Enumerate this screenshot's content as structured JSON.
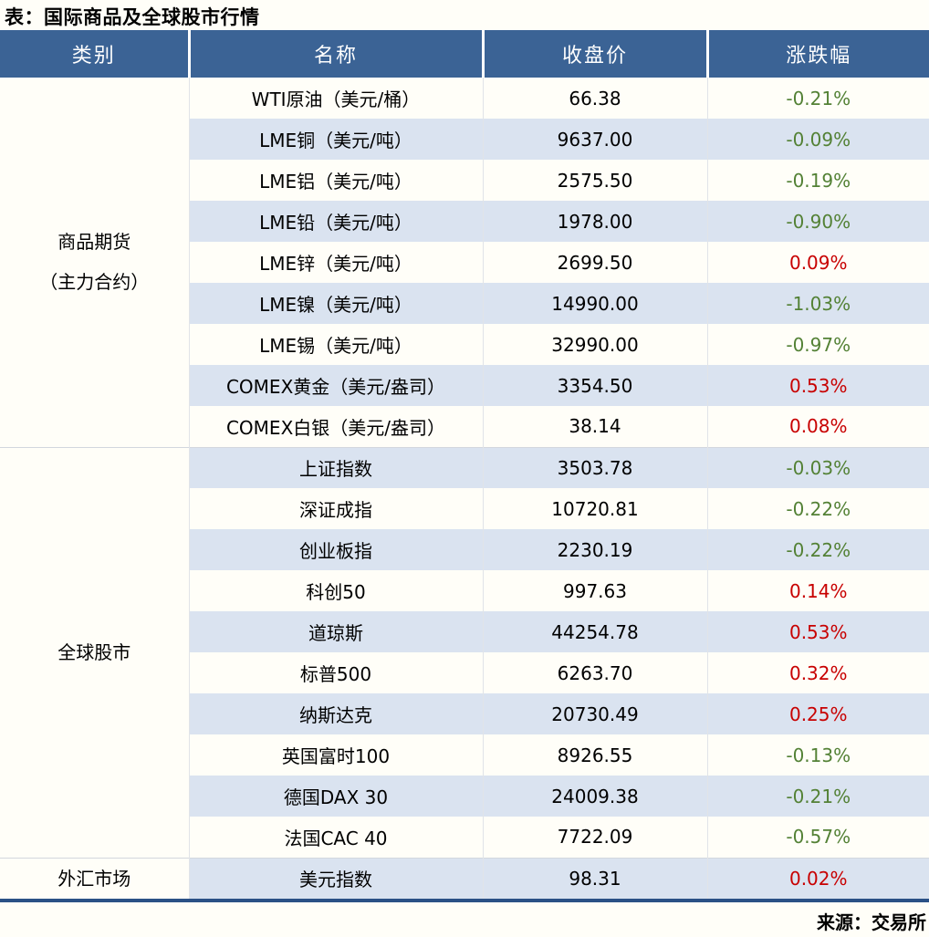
{
  "title": "表：国际商品及全球股市行情",
  "source": "来源：交易所",
  "colors": {
    "page-bg": "#FFFEF8",
    "header-bg": "#3B6395",
    "header-text": "#FFFFFF",
    "header-divider": "#FFFFFF",
    "stripe-bg": "#DAE3F0",
    "grid-line": "#E1E4E8",
    "section-line": "#D2D7DE",
    "bottom-border": "#2B5186",
    "up-red": "#C80000",
    "down-green": "#538135",
    "text": "#000000"
  },
  "chart_data": {
    "type": "table",
    "title": "表：国际商品及全球股市行情",
    "columns": [
      "类别",
      "名称",
      "收盘价",
      "涨跌幅"
    ],
    "legend_note": "red = up, green = down",
    "sections": [
      {
        "category": "商品期货\n（主力合约）",
        "rows": [
          {
            "name": "WTI原油（美元/桶）",
            "close": "66.38",
            "change": "-0.21%"
          },
          {
            "name": "LME铜（美元/吨）",
            "close": "9637.00",
            "change": "-0.09%"
          },
          {
            "name": "LME铝（美元/吨）",
            "close": "2575.50",
            "change": "-0.19%"
          },
          {
            "name": "LME铅（美元/吨）",
            "close": "1978.00",
            "change": "-0.90%"
          },
          {
            "name": "LME锌（美元/吨）",
            "close": "2699.50",
            "change": "0.09%"
          },
          {
            "name": "LME镍（美元/吨）",
            "close": "14990.00",
            "change": "-1.03%"
          },
          {
            "name": "LME锡（美元/吨）",
            "close": "32990.00",
            "change": "-0.97%"
          },
          {
            "name": "COMEX黄金（美元/盎司）",
            "close": "3354.50",
            "change": "0.53%"
          },
          {
            "name": "COMEX白银（美元/盎司）",
            "close": "38.14",
            "change": "0.08%"
          }
        ]
      },
      {
        "category": "全球股市",
        "rows": [
          {
            "name": "上证指数",
            "close": "3503.78",
            "change": "-0.03%"
          },
          {
            "name": "深证成指",
            "close": "10720.81",
            "change": "-0.22%"
          },
          {
            "name": "创业板指",
            "close": "2230.19",
            "change": "-0.22%"
          },
          {
            "name": "科创50",
            "close": "997.63",
            "change": "0.14%"
          },
          {
            "name": "道琼斯",
            "close": "44254.78",
            "change": "0.53%"
          },
          {
            "name": "标普500",
            "close": "6263.70",
            "change": "0.32%"
          },
          {
            "name": "纳斯达克",
            "close": "20730.49",
            "change": "0.25%"
          },
          {
            "name": "英国富时100",
            "close": "8926.55",
            "change": "-0.13%"
          },
          {
            "name": "德国DAX 30",
            "close": "24009.38",
            "change": "-0.21%"
          },
          {
            "name": "法国CAC 40",
            "close": "7722.09",
            "change": "-0.57%"
          }
        ]
      },
      {
        "category": "外汇市场",
        "rows": [
          {
            "name": "美元指数",
            "close": "98.31",
            "change": "0.02%"
          }
        ]
      }
    ]
  }
}
